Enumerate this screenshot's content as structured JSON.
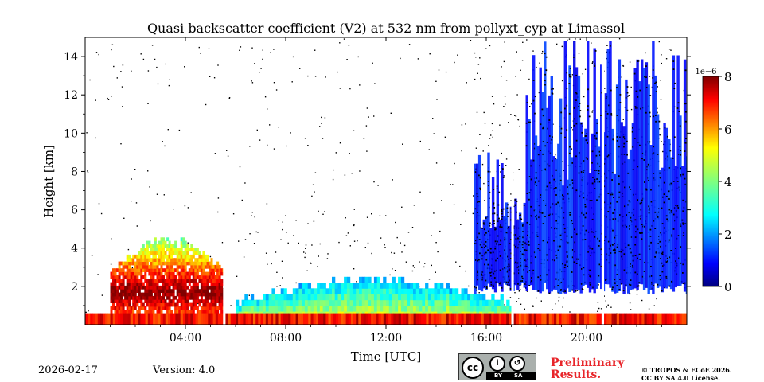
{
  "chart_data": {
    "type": "heatmap",
    "title": "Quasi backscatter coefficient (V2) at 532 nm from pollyxt_cyp at Limassol",
    "xlabel": "Time [UTC]",
    "ylabel": "Height [km]",
    "xlim_hours": [
      0,
      24
    ],
    "ylim_km": [
      0,
      15
    ],
    "x_ticks": [
      {
        "hour": 4,
        "label": "04:00"
      },
      {
        "hour": 8,
        "label": "08:00"
      },
      {
        "hour": 12,
        "label": "12:00"
      },
      {
        "hour": 16,
        "label": "16:00"
      },
      {
        "hour": 20,
        "label": "20:00"
      }
    ],
    "y_ticks": [
      2,
      4,
      6,
      8,
      10,
      12,
      14
    ],
    "colorbar": {
      "min": 0,
      "max": 8,
      "scale_label": "1e−6",
      "ticks": [
        0,
        2,
        4,
        6,
        8
      ],
      "colormap": "jet"
    },
    "features": [
      {
        "name": "surface aerosol layer",
        "t0": 0.0,
        "t1": 24.0,
        "h0": 0.0,
        "h1": 0.6,
        "value": 7.0
      },
      {
        "name": "morning dust layer",
        "t0": 1.0,
        "t1": 5.5,
        "h0": 1.0,
        "h1": 4.5,
        "value": 6.0
      },
      {
        "name": "midday boundary layer",
        "t0": 6.0,
        "t1": 15.0,
        "h0": 0.2,
        "h1": 2.0,
        "value": 3.0
      },
      {
        "name": "evening cloud columns",
        "t0": 15.5,
        "t1": 24.0,
        "h0": 1.5,
        "h1": 14.0,
        "value": 0.8
      }
    ],
    "data_gaps_hours": [
      [
        5.5,
        5.6
      ],
      [
        17.0,
        17.1
      ],
      [
        20.6,
        20.7
      ]
    ]
  },
  "footer": {
    "date": "2026-02-17",
    "version": "Version: 4.0",
    "preliminary_line1": "Preliminary",
    "preliminary_line2": "Results.",
    "copyright_line1": "© TROPOS & ECoE 2026.",
    "copyright_line2": "CC BY SA 4.0 License.",
    "license_badge": {
      "cc": "cc",
      "by": "BY",
      "sa": "SA"
    }
  },
  "colors": {
    "colormap_low": "#00007f",
    "colormap_high": "#7f0000",
    "prelim": "#e8252a"
  }
}
